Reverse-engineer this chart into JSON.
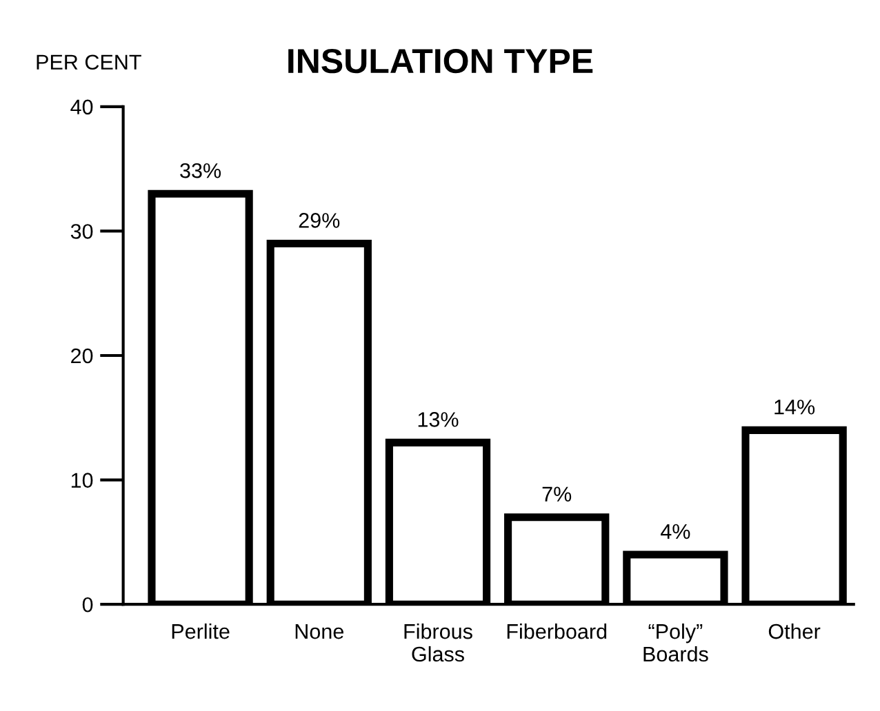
{
  "chart_data": {
    "type": "bar",
    "title": "INSULATION TYPE",
    "ylabel": "PER CENT",
    "categories": [
      "Perlite",
      "None",
      "Fibrous\nGlass",
      "Fiberboard",
      "“Poly”\nBoards",
      "Other"
    ],
    "values": [
      33,
      29,
      13,
      7,
      4,
      14
    ],
    "value_labels": [
      "33%",
      "29%",
      "13%",
      "7%",
      "4%",
      "14%"
    ],
    "color": "#ffffff",
    "ylim": [
      0,
      40
    ],
    "yticks": [
      0,
      10,
      20,
      30,
      40
    ],
    "grid": false,
    "legend": false
  }
}
